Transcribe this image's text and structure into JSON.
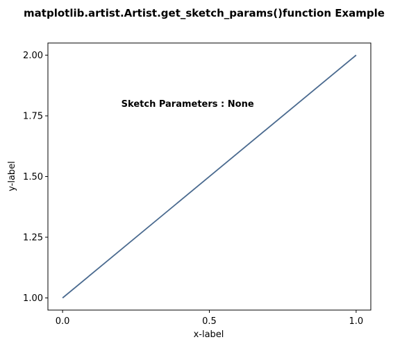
{
  "chart_data": {
    "type": "line",
    "title": "matplotlib.artist.Artist.get_sketch_params()function Example",
    "xlabel": "x-label",
    "ylabel": "y-label",
    "xlim": [
      -0.05,
      1.05
    ],
    "ylim": [
      0.95,
      2.05
    ],
    "grid": false,
    "x_ticks": [
      0.0,
      0.5,
      1.0
    ],
    "x_tick_labels": [
      "0.0",
      "0.5",
      "1.0"
    ],
    "y_ticks": [
      1.0,
      1.25,
      1.5,
      1.75,
      2.0
    ],
    "y_tick_labels": [
      "1.00",
      "1.25",
      "1.50",
      "1.75",
      "2.00"
    ],
    "series": [
      {
        "x": [
          0,
          1
        ],
        "y": [
          1,
          2
        ],
        "color": "#4a6a8f"
      }
    ],
    "annotations": [
      {
        "text": "Sketch Parameters : None",
        "x": 0.2,
        "y": 1.8
      }
    ]
  }
}
